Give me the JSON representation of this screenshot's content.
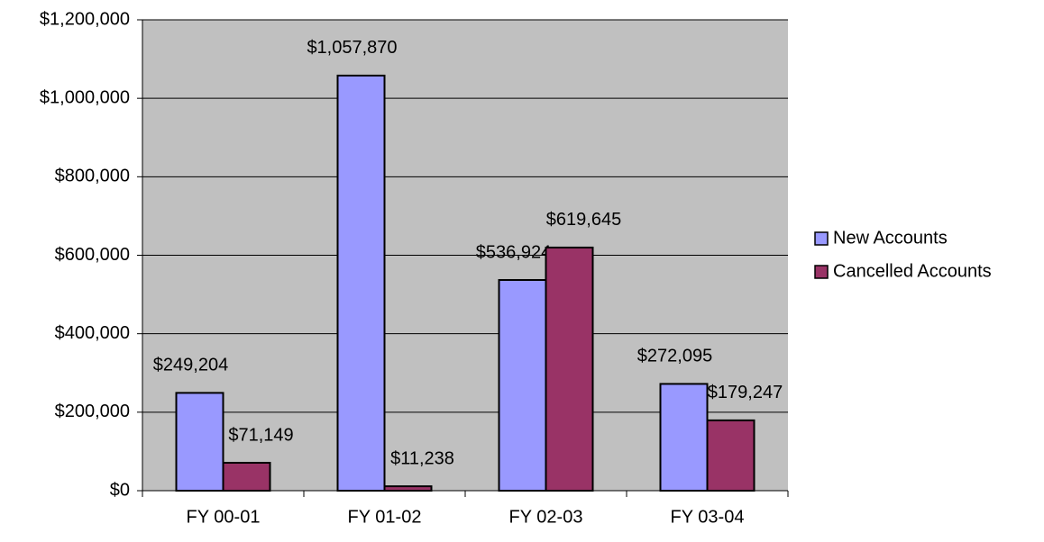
{
  "chart_data": {
    "type": "bar",
    "categories": [
      "FY 00-01",
      "FY 01-02",
      "FY 02-03",
      "FY 03-04"
    ],
    "series": [
      {
        "name": "New Accounts",
        "color": "#9999ff",
        "values": [
          249204,
          1057870,
          536924,
          272095
        ],
        "value_labels": [
          "$249,204",
          "$1,057,870",
          "$536,924",
          "$272,095"
        ]
      },
      {
        "name": "Cancelled Accounts",
        "color": "#993366",
        "values": [
          71149,
          11238,
          619645,
          179247
        ],
        "value_labels": [
          "$71,149",
          "$11,238",
          "$619,645",
          "$179,247"
        ]
      }
    ],
    "ylim": [
      0,
      1200000
    ],
    "yticks": [
      {
        "value": 0,
        "label": "$0"
      },
      {
        "value": 200000,
        "label": "$200,000"
      },
      {
        "value": 400000,
        "label": "$400,000"
      },
      {
        "value": 600000,
        "label": "$600,000"
      },
      {
        "value": 800000,
        "label": "$800,000"
      },
      {
        "value": 1000000,
        "label": "$1,000,000"
      },
      {
        "value": 1200000,
        "label": "$1,200,000"
      }
    ],
    "grid": true,
    "legend": "right"
  }
}
